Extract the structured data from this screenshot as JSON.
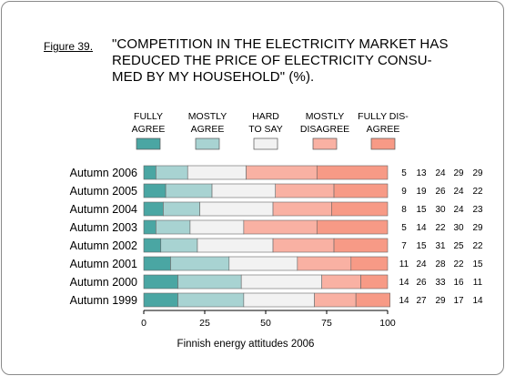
{
  "figure_label": "Figure 39.",
  "title_lines": [
    "\"COMPETITION IN THE ELECTRICITY MARKET HAS",
    "REDUCED THE PRICE OF ELECTRICITY CONSU-",
    "MED BY MY HOUSEHOLD\" (%)."
  ],
  "chart_data": {
    "type": "bar",
    "orientation": "horizontal",
    "stacked": true,
    "categories": [
      "Autumn 2006",
      "Autumn 2005",
      "Autumn 2004",
      "Autumn 2003",
      "Autumn 2002",
      "Autumn 2001",
      "Autumn 2000",
      "Autumn 1999"
    ],
    "series": [
      {
        "name": "FULLY AGREE",
        "legend_lines": [
          "FULLY",
          "AGREE"
        ],
        "color": "#4aa6a3",
        "values": [
          5,
          9,
          8,
          5,
          7,
          11,
          14,
          14
        ]
      },
      {
        "name": "MOSTLY AGREE",
        "legend_lines": [
          "MOSTLY",
          "AGREE"
        ],
        "color": "#a8d3d2",
        "values": [
          13,
          19,
          15,
          14,
          15,
          24,
          26,
          27
        ]
      },
      {
        "name": "HARD TO SAY",
        "legend_lines": [
          "HARD",
          "TO SAY"
        ],
        "color": "#f2f2f2",
        "values": [
          24,
          26,
          30,
          22,
          31,
          28,
          33,
          29
        ]
      },
      {
        "name": "MOSTLY DISAGREE",
        "legend_lines": [
          "MOSTLY",
          "DISAGREE"
        ],
        "color": "#f9b1a3",
        "values": [
          29,
          24,
          24,
          30,
          25,
          22,
          16,
          17
        ]
      },
      {
        "name": "FULLY DISAGREE",
        "legend_lines": [
          "FULLY DIS-",
          "AGREE"
        ],
        "color": "#f79a86",
        "values": [
          29,
          22,
          23,
          29,
          22,
          15,
          11,
          14
        ]
      }
    ],
    "xlim": [
      0,
      100
    ],
    "xticks": [
      "0",
      "25",
      "50",
      "75",
      "100"
    ],
    "xlabel": "Finnish energy attitudes 2006",
    "value_labels_on_right": true
  }
}
